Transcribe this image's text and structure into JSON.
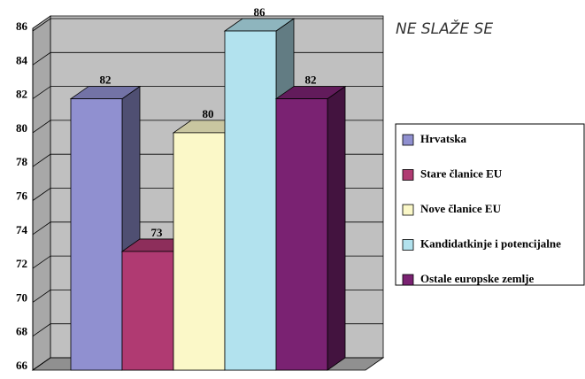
{
  "chart_data": {
    "type": "bar3d",
    "title": "NE SLAŽE SE",
    "ylim": [
      66,
      86
    ],
    "yticks": [
      66,
      68,
      70,
      72,
      74,
      76,
      78,
      80,
      82,
      84,
      86
    ],
    "grid": true,
    "series": [
      {
        "name": "Hrvatska",
        "color": "#9090d0",
        "values": [
          82
        ]
      },
      {
        "name": "Stare članice EU",
        "color": "#b03a72",
        "values": [
          73
        ]
      },
      {
        "name": "Nove članice EU",
        "color": "#fbf8c8",
        "values": [
          80
        ]
      },
      {
        "name": "Kandidatkinje i potencijalne",
        "color": "#b2e2ee",
        "values": [
          86
        ]
      },
      {
        "name": "Ostale europske zemlje",
        "color": "#7a2272",
        "values": [
          82
        ]
      }
    ]
  }
}
